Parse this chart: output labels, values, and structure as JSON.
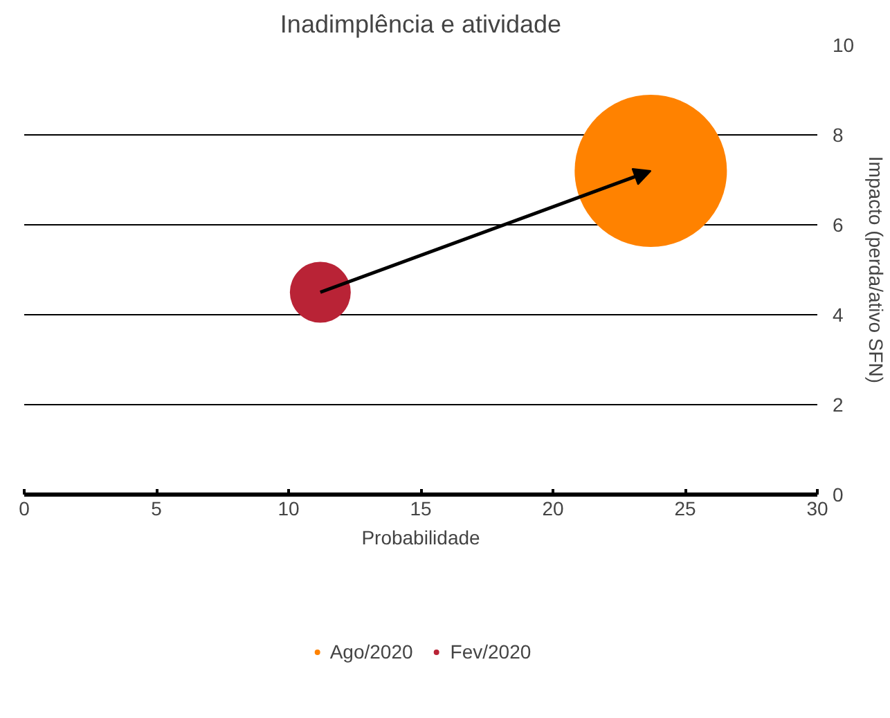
{
  "chart_data": {
    "type": "bubble",
    "title": "Inadimplência e atividade",
    "xlabel": "Probabilidade",
    "ylabel": "Impacto (perda/ativo SFN)",
    "xlim": [
      0,
      30
    ],
    "xticks": [
      0,
      5,
      10,
      15,
      20,
      25,
      30
    ],
    "ylim": [
      0,
      10
    ],
    "yticks": [
      0,
      2,
      4,
      6,
      8,
      10
    ],
    "grid": "y",
    "legend": "bottom",
    "series": [
      {
        "name": "Ago/2020",
        "color": "#ff8200",
        "x": [
          23.7
        ],
        "values": [
          7.2
        ],
        "sizes": [
          1
        ]
      },
      {
        "name": "Fev/2020",
        "color": "#b92336",
        "x": [
          11.2
        ],
        "values": [
          4.5
        ],
        "sizes": [
          0.16
        ]
      }
    ]
  }
}
